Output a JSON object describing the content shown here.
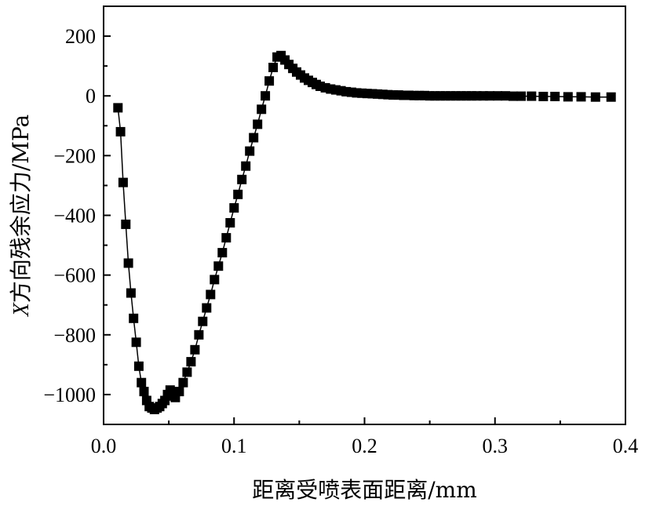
{
  "chart_data": {
    "type": "scatter",
    "title": "",
    "xlabel": "距离受喷表面距离/mm",
    "ylabel_var": "X",
    "ylabel_rest": "方向残余应力/MPa",
    "xlim": [
      0.0,
      0.4
    ],
    "ylim": [
      -1100,
      300
    ],
    "x_ticks": [
      0.0,
      0.1,
      0.2,
      0.3,
      0.4
    ],
    "x_tick_labels": [
      "0.0",
      "0.1",
      "0.2",
      "0.3",
      "0.4"
    ],
    "y_ticks": [
      -1000,
      -800,
      -600,
      -400,
      -200,
      0,
      200
    ],
    "y_tick_labels": [
      "−1000",
      "−800",
      "−600",
      "−400",
      "−200",
      "0",
      "200"
    ],
    "grid": false,
    "marker": "square",
    "color": "#000000",
    "series": [
      {
        "x": [
          0.011,
          0.013,
          0.015,
          0.017,
          0.019,
          0.021,
          0.023,
          0.025,
          0.027,
          0.029,
          0.031,
          0.033,
          0.035,
          0.037,
          0.039,
          0.041,
          0.043,
          0.045,
          0.047,
          0.049,
          0.051,
          0.053,
          0.055,
          0.058,
          0.061,
          0.064,
          0.067,
          0.07,
          0.073,
          0.076,
          0.079,
          0.082,
          0.085,
          0.088,
          0.091,
          0.094,
          0.097,
          0.1,
          0.103,
          0.106,
          0.109,
          0.112,
          0.115,
          0.118,
          0.121,
          0.124,
          0.127,
          0.13,
          0.133,
          0.136,
          0.139,
          0.142,
          0.145,
          0.148,
          0.151,
          0.154,
          0.157,
          0.16,
          0.163,
          0.166,
          0.17,
          0.174,
          0.178,
          0.182,
          0.186,
          0.19,
          0.194,
          0.198,
          0.202,
          0.206,
          0.21,
          0.214,
          0.218,
          0.222,
          0.226,
          0.23,
          0.234,
          0.238,
          0.242,
          0.246,
          0.25,
          0.254,
          0.258,
          0.262,
          0.266,
          0.27,
          0.274,
          0.278,
          0.282,
          0.286,
          0.291,
          0.296,
          0.302,
          0.308,
          0.314,
          0.32,
          0.328,
          0.337,
          0.346,
          0.356,
          0.366,
          0.377,
          0.389
        ],
        "y": [
          -40,
          -120,
          -290,
          -430,
          -560,
          -660,
          -745,
          -825,
          -905,
          -960,
          -990,
          -1020,
          -1040,
          -1045,
          -1050,
          -1045,
          -1040,
          -1030,
          -1020,
          -1000,
          -985,
          -1005,
          -1010,
          -990,
          -960,
          -925,
          -890,
          -850,
          -800,
          -755,
          -710,
          -665,
          -615,
          -570,
          -525,
          -475,
          -425,
          -375,
          -330,
          -280,
          -235,
          -185,
          -140,
          -95,
          -45,
          0,
          50,
          95,
          130,
          135,
          120,
          105,
          92,
          80,
          70,
          60,
          52,
          45,
          38,
          32,
          27,
          23,
          20,
          17,
          14,
          12,
          10,
          9,
          8,
          7,
          6,
          5,
          4,
          3,
          3,
          2,
          2,
          1,
          1,
          1,
          0,
          0,
          0,
          0,
          0,
          0,
          0,
          0,
          0,
          0,
          0,
          0,
          0,
          0,
          -1,
          -1,
          -1,
          -2,
          -2,
          -3,
          -3,
          -4,
          -4
        ]
      }
    ]
  }
}
